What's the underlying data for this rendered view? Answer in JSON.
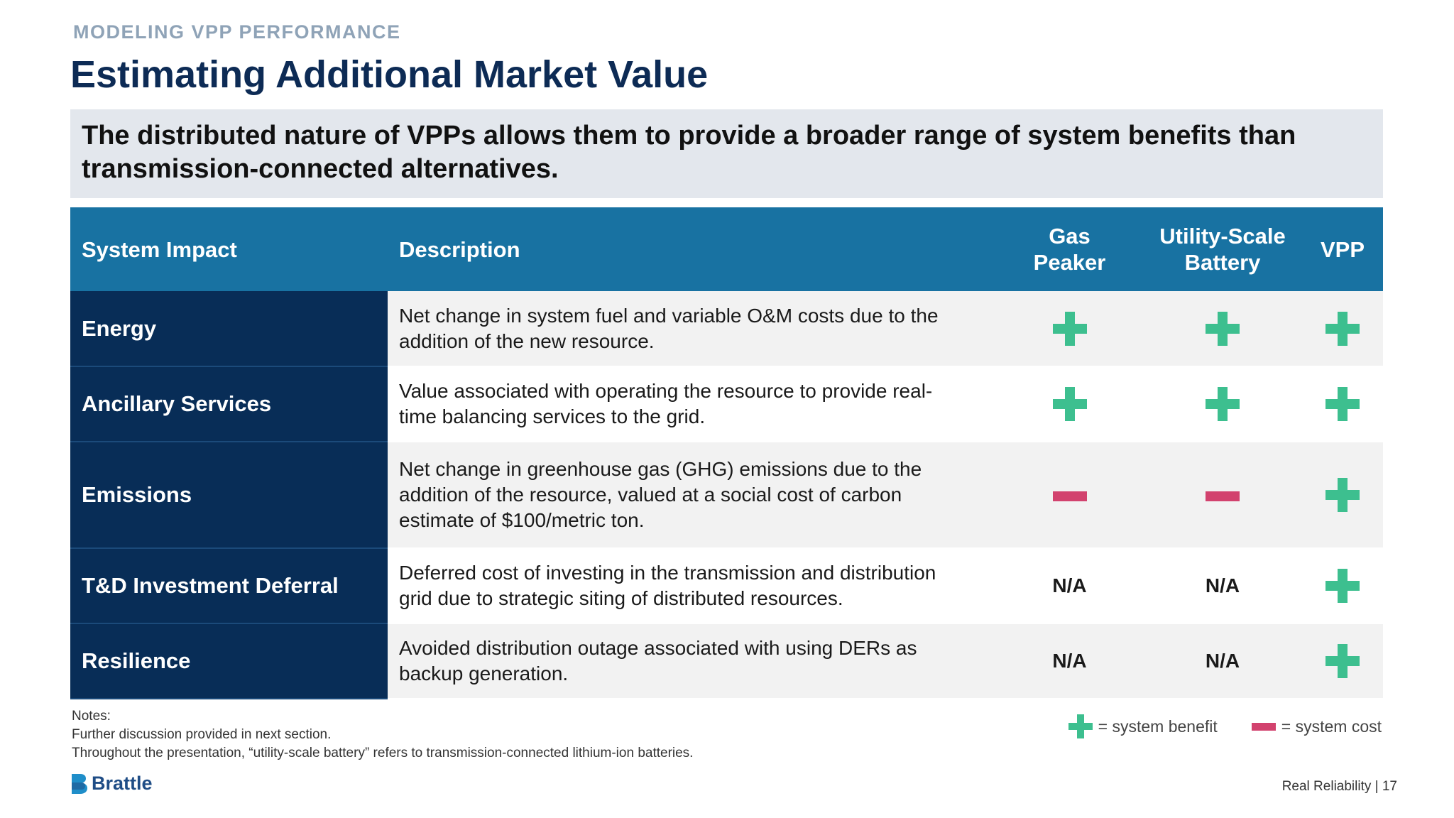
{
  "eyebrow": "MODELING VPP PERFORMANCE",
  "title": "Estimating Additional Market Value",
  "callout": {
    "line1": "The distributed nature of VPPs allows them to provide a broader range of system benefits than",
    "line2": "transmission-connected alternatives."
  },
  "table": {
    "headers": {
      "impact": "System Impact",
      "description": "Description",
      "gas_peaker": [
        "Gas",
        "Peaker"
      ],
      "battery": [
        "Utility-Scale",
        "Battery"
      ],
      "vpp": "VPP"
    },
    "rows": [
      {
        "impact": "Energy",
        "description": [
          "Net change in system fuel and variable O&M costs due to the",
          "addition of the new resource."
        ],
        "gas_peaker": "plus",
        "battery": "plus",
        "vpp": "plus"
      },
      {
        "impact": "Ancillary Services",
        "description": [
          "Value associated with operating the resource to provide real-",
          "time balancing services to the grid."
        ],
        "gas_peaker": "plus",
        "battery": "plus",
        "vpp": "plus"
      },
      {
        "impact": "Emissions",
        "description": [
          "Net change in greenhouse gas (GHG) emissions due to the",
          "addition of the resource, valued at a social cost of carbon",
          "estimate of $100/metric ton."
        ],
        "gas_peaker": "minus",
        "battery": "minus",
        "vpp": "plus"
      },
      {
        "impact": "T&D Investment Deferral",
        "description": [
          "Deferred cost of investing in the transmission and distribution",
          "grid due to strategic siting of distributed resources."
        ],
        "gas_peaker": "N/A",
        "battery": "N/A",
        "vpp": "plus"
      },
      {
        "impact": "Resilience",
        "description": [
          "Avoided distribution outage associated with using DERs as",
          "backup generation."
        ],
        "gas_peaker": "N/A",
        "battery": "N/A",
        "vpp": "plus"
      }
    ]
  },
  "notes": {
    "label": "Notes:",
    "line1": "Further discussion provided in next section.",
    "line2": "Throughout the presentation, “utility-scale battery” refers to transmission-connected lithium-ion batteries."
  },
  "legend": {
    "benefit": "= system benefit",
    "cost": "= system cost",
    "benefit_color": "#3dbf8f",
    "cost_color": "#d2426e"
  },
  "logo": {
    "text": "Brattle"
  },
  "footer": {
    "text": "Real Reliability | 17"
  }
}
